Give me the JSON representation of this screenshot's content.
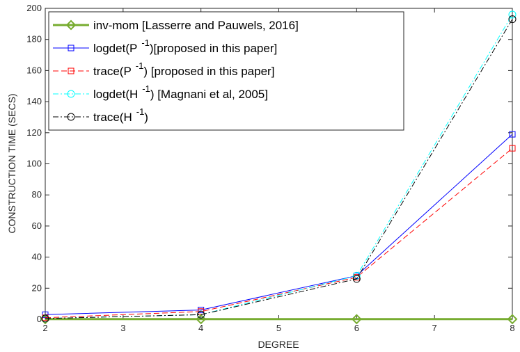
{
  "chart_data": {
    "type": "line",
    "xlabel": "DEGREE",
    "ylabel": "CONSTRUCTION TIME (SECS)",
    "xlim": [
      2,
      8
    ],
    "ylim": [
      0,
      200
    ],
    "xticks": [
      "2",
      "3",
      "4",
      "5",
      "6",
      "7",
      "8"
    ],
    "yticks": [
      "0",
      "20",
      "40",
      "60",
      "80",
      "100",
      "120",
      "140",
      "160",
      "180",
      "200"
    ],
    "x": [
      2,
      4,
      6,
      8
    ],
    "grid": false,
    "legend_position": "top-left",
    "series": [
      {
        "name": "inv-mom [Lasserre and Pauwels, 2016]",
        "legend_label": {
          "pre": "inv-mom [Lasserre and Pauwels, 2016]",
          "sup": "",
          "post": ""
        },
        "values": [
          0.1,
          0.1,
          0.1,
          0.1
        ],
        "color": "#77ac30",
        "dash": "solid",
        "marker": "diamond",
        "width": 3
      },
      {
        "name": "logdet(P -1)[proposed in this paper]",
        "legend_label": {
          "pre": "logdet(P",
          "sup": "-1",
          "post": ")[proposed in this paper]"
        },
        "values": [
          3,
          6,
          28,
          119
        ],
        "color": "#0000ff",
        "dash": "solid",
        "marker": "square",
        "width": 1
      },
      {
        "name": "trace(P -1) [proposed in this paper]",
        "legend_label": {
          "pre": "trace(P",
          "sup": "-1",
          "post": ") [proposed in this paper]"
        },
        "values": [
          1,
          5,
          27,
          110
        ],
        "color": "#ff0000",
        "dash": "dashed",
        "marker": "square",
        "width": 1
      },
      {
        "name": "logdet(H -1) [Magnani et al, 2005]",
        "legend_label": {
          "pre": "logdet(H",
          "sup": "-1",
          "post": ") [Magnani et al, 2005]"
        },
        "values": [
          0.5,
          3,
          28,
          196
        ],
        "color": "#00ffff",
        "dash": "dashdot",
        "marker": "circle",
        "width": 1
      },
      {
        "name": "trace(H -1)",
        "legend_label": {
          "pre": "trace(H",
          "sup": "-1",
          "post": ")"
        },
        "values": [
          0.5,
          3,
          26,
          193
        ],
        "color": "#000000",
        "dash": "dashdot",
        "marker": "circle",
        "width": 1
      }
    ]
  }
}
